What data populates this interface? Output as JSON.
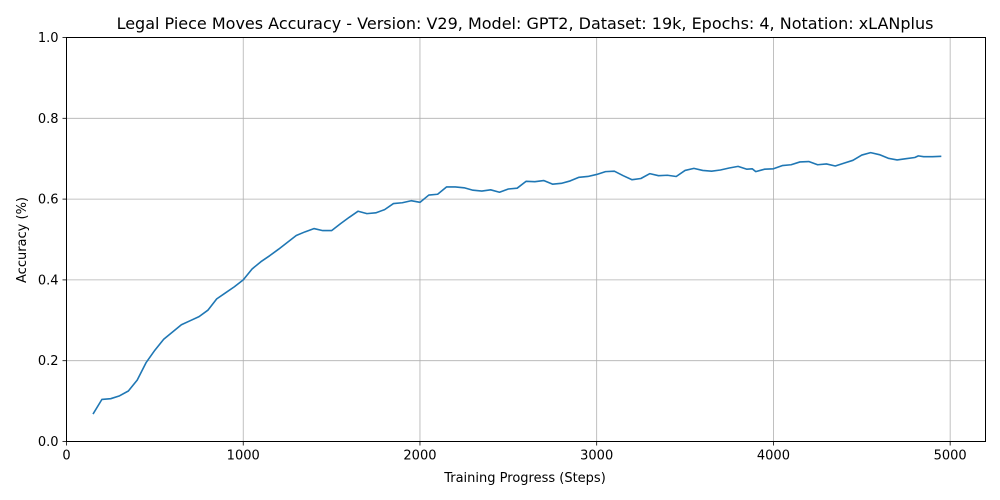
{
  "chart_data": {
    "type": "line",
    "title": "Legal Piece Moves Accuracy - Version: V29, Model: GPT2, Dataset: 19k, Epochs: 4, Notation: xLANplus",
    "xlabel": "Training Progress (Steps)",
    "ylabel": "Accuracy (%)",
    "xlim": [
      0,
      5200
    ],
    "ylim": [
      0,
      1.0
    ],
    "xticks": [
      0,
      1000,
      2000,
      3000,
      4000,
      5000
    ],
    "yticks": [
      0.0,
      0.2,
      0.4,
      0.6,
      0.8,
      1.0
    ],
    "xtick_labels": [
      "0",
      "1000",
      "2000",
      "3000",
      "4000",
      "5000"
    ],
    "ytick_labels": [
      "0.0",
      "0.2",
      "0.4",
      "0.6",
      "0.8",
      "1.0"
    ],
    "grid": true,
    "series": [
      {
        "color": "#1f77b4",
        "x": [
          150,
          200,
          250,
          300,
          350,
          400,
          450,
          500,
          550,
          600,
          650,
          700,
          750,
          800,
          850,
          900,
          950,
          1000,
          1050,
          1100,
          1150,
          1200,
          1250,
          1300,
          1350,
          1400,
          1450,
          1500,
          1550,
          1600,
          1650,
          1700,
          1750,
          1800,
          1850,
          1900,
          1950,
          2000,
          2050,
          2100,
          2150,
          2200,
          2250,
          2300,
          2350,
          2400,
          2450,
          2500,
          2550,
          2600,
          2650,
          2700,
          2750,
          2800,
          2850,
          2900,
          2950,
          3000,
          3050,
          3100,
          3150,
          3200,
          3250,
          3300,
          3350,
          3400,
          3450,
          3500,
          3550,
          3600,
          3650,
          3700,
          3750,
          3800,
          3850,
          3880,
          3900,
          3950,
          4000,
          4050,
          4100,
          4150,
          4200,
          4250,
          4300,
          4350,
          4400,
          4450,
          4500,
          4550,
          4600,
          4650,
          4700,
          4750,
          4800,
          4820,
          4850,
          4900,
          4950
        ],
        "y": [
          0.068,
          0.104,
          0.106,
          0.113,
          0.125,
          0.152,
          0.195,
          0.226,
          0.253,
          0.271,
          0.289,
          0.299,
          0.309,
          0.325,
          0.353,
          0.368,
          0.383,
          0.4,
          0.427,
          0.445,
          0.46,
          0.476,
          0.493,
          0.51,
          0.519,
          0.527,
          0.522,
          0.522,
          0.539,
          0.555,
          0.57,
          0.564,
          0.566,
          0.574,
          0.589,
          0.591,
          0.596,
          0.592,
          0.61,
          0.612,
          0.63,
          0.63,
          0.628,
          0.622,
          0.62,
          0.623,
          0.617,
          0.625,
          0.627,
          0.644,
          0.643,
          0.646,
          0.637,
          0.639,
          0.645,
          0.654,
          0.656,
          0.661,
          0.668,
          0.669,
          0.658,
          0.648,
          0.651,
          0.663,
          0.658,
          0.659,
          0.656,
          0.671,
          0.676,
          0.671,
          0.669,
          0.672,
          0.677,
          0.681,
          0.674,
          0.675,
          0.668,
          0.674,
          0.675,
          0.683,
          0.685,
          0.692,
          0.693,
          0.685,
          0.687,
          0.682,
          0.689,
          0.696,
          0.709,
          0.715,
          0.71,
          0.701,
          0.697,
          0.7,
          0.703,
          0.707,
          0.705,
          0.705,
          0.706
        ]
      }
    ]
  }
}
